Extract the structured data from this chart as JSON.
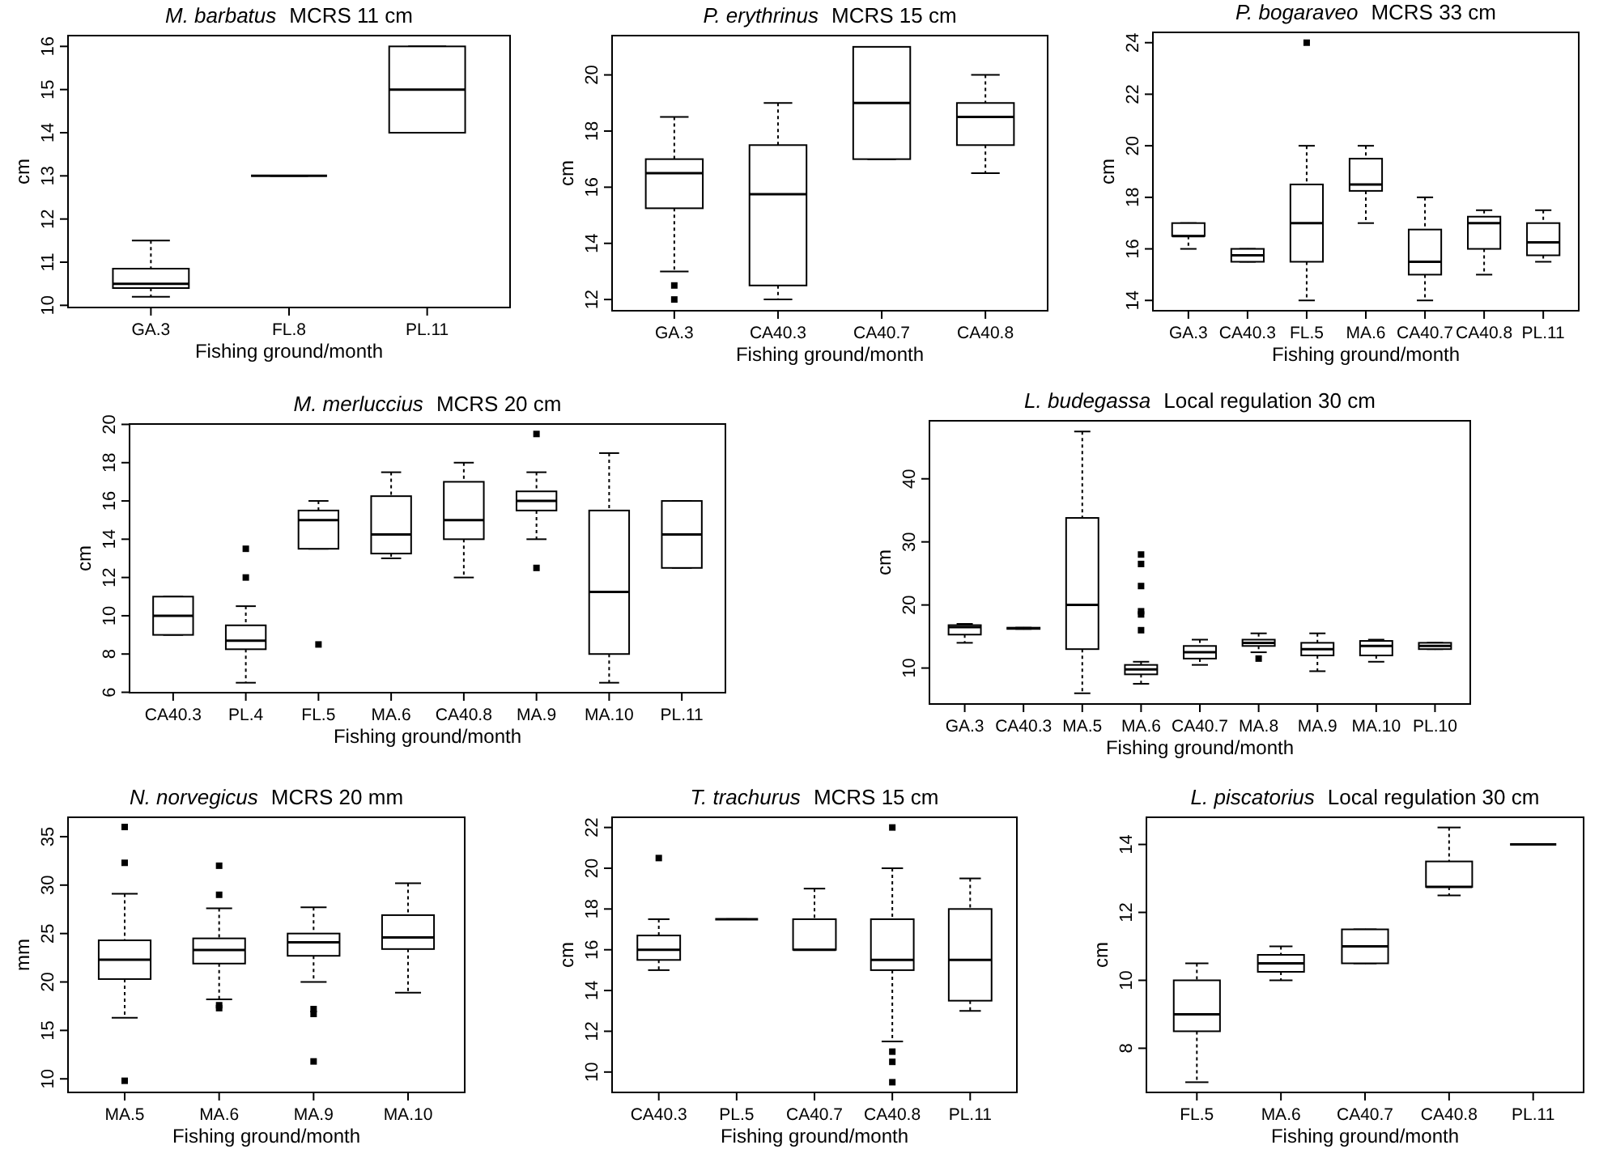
{
  "chart_data": [
    {
      "type": "box",
      "title": "M. barbatus",
      "subtitle": "MCRS 11 cm",
      "xlabel": "Fishing ground/month",
      "ylabel": "cm",
      "categories": [
        "GA.3",
        "FL.8",
        "PL.11"
      ],
      "ylim": [
        9.95,
        16.25
      ],
      "yticks": [
        10,
        11,
        12,
        13,
        14,
        15,
        16
      ],
      "grid": false,
      "boxes": [
        {
          "low": 10.2,
          "q1": 10.4,
          "median": 10.5,
          "q3": 10.85,
          "high": 11.5
        },
        {
          "low": 13,
          "q1": 13,
          "median": 13,
          "q3": 13,
          "high": 13
        },
        {
          "low": 14,
          "q1": 14,
          "median": 15,
          "q3": 16,
          "high": 16
        }
      ]
    },
    {
      "type": "box",
      "title": "P. erythrinus",
      "subtitle": "MCRS 15 cm",
      "xlabel": "Fishing ground/month",
      "ylabel": "cm",
      "categories": [
        "GA.3",
        "CA40.3",
        "CA40.7",
        "CA40.8"
      ],
      "ylim": [
        11.6,
        21.4
      ],
      "yticks": [
        12,
        14,
        16,
        18,
        20
      ],
      "grid": false,
      "boxes": [
        {
          "low": 13,
          "q1": 15.25,
          "median": 16.5,
          "q3": 17,
          "high": 18.5,
          "outliers": [
            12.5,
            12
          ]
        },
        {
          "low": 12,
          "q1": 12.5,
          "median": 15.75,
          "q3": 17.5,
          "high": 19
        },
        {
          "low": 17,
          "q1": 17,
          "median": 19,
          "q3": 21,
          "high": 21
        },
        {
          "low": 16.5,
          "q1": 17.5,
          "median": 18.5,
          "q3": 19,
          "high": 20
        }
      ]
    },
    {
      "type": "box",
      "title": "P. bogaraveo",
      "subtitle": "MCRS 33 cm",
      "xlabel": "Fishing ground/month",
      "ylabel": "cm",
      "categories": [
        "GA.3",
        "CA40.3",
        "FL.5",
        "MA.6",
        "CA40.7",
        "CA40.8",
        "PL.11"
      ],
      "ylim": [
        13.6,
        24.4
      ],
      "yticks": [
        14,
        16,
        18,
        20,
        22,
        24
      ],
      "grid": false,
      "boxes": [
        {
          "low": 16,
          "q1": 16.5,
          "median": 16.5,
          "q3": 17,
          "high": 17
        },
        {
          "low": 15.5,
          "q1": 15.5,
          "median": 15.75,
          "q3": 16,
          "high": 16
        },
        {
          "low": 14,
          "q1": 15.5,
          "median": 17,
          "q3": 18.5,
          "high": 20,
          "outliers": [
            24
          ]
        },
        {
          "low": 17,
          "q1": 18.25,
          "median": 18.5,
          "q3": 19.5,
          "high": 20
        },
        {
          "low": 14,
          "q1": 15,
          "median": 15.5,
          "q3": 16.75,
          "high": 18
        },
        {
          "low": 15,
          "q1": 16,
          "median": 17,
          "q3": 17.25,
          "high": 17.5
        },
        {
          "low": 15.5,
          "q1": 15.75,
          "median": 16.25,
          "q3": 17,
          "high": 17.5
        }
      ]
    },
    {
      "type": "box",
      "title": "M. merluccius",
      "subtitle": "MCRS 20 cm",
      "xlabel": "Fishing ground/month",
      "ylabel": "cm",
      "categories": [
        "CA40.3",
        "PL.4",
        "FL.5",
        "MA.6",
        "CA40.8",
        "MA.9",
        "MA.10",
        "PL.11"
      ],
      "ylim": [
        5.98,
        20.02
      ],
      "yticks": [
        6,
        8,
        10,
        12,
        14,
        16,
        18,
        20
      ],
      "grid": false,
      "boxes": [
        {
          "low": 9,
          "q1": 9,
          "median": 10,
          "q3": 11,
          "high": 11
        },
        {
          "low": 6.5,
          "q1": 8.25,
          "median": 8.7,
          "q3": 9.5,
          "high": 10.5,
          "outliers": [
            12,
            13.5
          ]
        },
        {
          "low": 13.5,
          "q1": 13.5,
          "median": 15,
          "q3": 15.5,
          "high": 16,
          "outliers": [
            8.5
          ]
        },
        {
          "low": 13,
          "q1": 13.25,
          "median": 14.25,
          "q3": 16.25,
          "high": 17.5
        },
        {
          "low": 12,
          "q1": 14,
          "median": 15,
          "q3": 17,
          "high": 18
        },
        {
          "low": 14,
          "q1": 15.5,
          "median": 16,
          "q3": 16.5,
          "high": 17.5,
          "outliers": [
            19.5,
            12.5
          ]
        },
        {
          "low": 6.5,
          "q1": 8,
          "median": 11.25,
          "q3": 15.5,
          "high": 18.5
        },
        {
          "low": 12.5,
          "q1": 12.5,
          "median": 14.25,
          "q3": 16,
          "high": 16
        }
      ]
    },
    {
      "type": "box",
      "title": "L. budegassa",
      "subtitle": "Local regulation 30 cm",
      "xlabel": "Fishing ground/month",
      "ylabel": "cm",
      "categories": [
        "GA.3",
        "CA40.3",
        "MA.5",
        "MA.6",
        "CA40.7",
        "MA.8",
        "MA.9",
        "MA.10",
        "PL.10"
      ],
      "ylim": [
        4.3,
        49.2
      ],
      "yticks": [
        10,
        20,
        30,
        40
      ],
      "grid": false,
      "boxes": [
        {
          "low": 14,
          "q1": 15.3,
          "median": 16.5,
          "q3": 16.8,
          "high": 17
        },
        {
          "low": 16.2,
          "q1": 16.2,
          "median": 16.3,
          "q3": 16.4,
          "high": 16.4
        },
        {
          "low": 6,
          "q1": 13,
          "median": 20,
          "q3": 33.8,
          "high": 47.5
        },
        {
          "low": 7.5,
          "q1": 9,
          "median": 9.8,
          "q3": 10.5,
          "high": 11,
          "outliers": [
            16,
            18.5,
            19,
            23,
            26.5,
            28
          ]
        },
        {
          "low": 10.5,
          "q1": 11.5,
          "median": 12.5,
          "q3": 13.5,
          "high": 14.5
        },
        {
          "low": 12.5,
          "q1": 13.5,
          "median": 14,
          "q3": 14.5,
          "high": 15.5,
          "outliers": [
            11.5
          ]
        },
        {
          "low": 9.5,
          "q1": 12,
          "median": 13,
          "q3": 14,
          "high": 15.5
        },
        {
          "low": 11,
          "q1": 12,
          "median": 13.5,
          "q3": 14.3,
          "high": 14.5
        },
        {
          "low": 13,
          "q1": 13,
          "median": 13.5,
          "q3": 14,
          "high": 14
        }
      ]
    },
    {
      "type": "box",
      "title": "N. norvegicus",
      "subtitle": "MCRS 20 mm",
      "xlabel": "Fishing ground/month",
      "ylabel": "mm",
      "categories": [
        "MA.5",
        "MA.6",
        "MA.9",
        "MA.10"
      ],
      "ylim": [
        8.6,
        37
      ],
      "yticks": [
        10,
        15,
        20,
        25,
        30,
        35
      ],
      "grid": false,
      "boxes": [
        {
          "low": 16.3,
          "q1": 20.3,
          "median": 22.3,
          "q3": 24.3,
          "high": 29.1,
          "outliers": [
            32.3,
            36,
            9.8
          ]
        },
        {
          "low": 18.2,
          "q1": 21.9,
          "median": 23.3,
          "q3": 24.5,
          "high": 27.6,
          "outliers": [
            17.3,
            17.6,
            29,
            32
          ]
        },
        {
          "low": 20,
          "q1": 22.7,
          "median": 24.1,
          "q3": 25,
          "high": 27.7,
          "outliers": [
            16.7,
            17.2,
            11.8
          ]
        },
        {
          "low": 18.9,
          "q1": 23.4,
          "median": 24.6,
          "q3": 26.9,
          "high": 30.2
        }
      ]
    },
    {
      "type": "box",
      "title": "T. trachurus",
      "subtitle": "MCRS 15 cm",
      "xlabel": "Fishing ground/month",
      "ylabel": "cm",
      "categories": [
        "CA40.3",
        "PL.5",
        "CA40.7",
        "CA40.8",
        "PL.11"
      ],
      "ylim": [
        9,
        22.5
      ],
      "yticks": [
        10,
        12,
        14,
        16,
        18,
        20,
        22
      ],
      "grid": false,
      "boxes": [
        {
          "low": 15,
          "q1": 15.5,
          "median": 16,
          "q3": 16.7,
          "high": 17.5,
          "outliers": [
            20.5
          ]
        },
        {
          "low": 17.5,
          "q1": 17.5,
          "median": 17.5,
          "q3": 17.5,
          "high": 17.5
        },
        {
          "low": 16,
          "q1": 16,
          "median": 16,
          "q3": 17.5,
          "high": 19
        },
        {
          "low": 11.5,
          "q1": 15,
          "median": 15.5,
          "q3": 17.5,
          "high": 20,
          "outliers": [
            22,
            11,
            10.5,
            9.5
          ]
        },
        {
          "low": 13,
          "q1": 13.5,
          "median": 15.5,
          "q3": 18,
          "high": 19.5
        }
      ]
    },
    {
      "type": "box",
      "title": "L. piscatorius",
      "subtitle": "Local regulation 30 cm",
      "xlabel": "Fishing ground/month",
      "ylabel": "cm",
      "categories": [
        "FL.5",
        "MA.6",
        "CA40.7",
        "CA40.8",
        "PL.11"
      ],
      "ylim": [
        6.7,
        14.8
      ],
      "yticks": [
        8,
        10,
        12,
        14
      ],
      "grid": false,
      "boxes": [
        {
          "low": 7,
          "q1": 8.5,
          "median": 9,
          "q3": 10,
          "high": 10.5
        },
        {
          "low": 10,
          "q1": 10.25,
          "median": 10.5,
          "q3": 10.75,
          "high": 11
        },
        {
          "low": 10.5,
          "q1": 10.5,
          "median": 11,
          "q3": 11.5,
          "high": 11.5
        },
        {
          "low": 12.5,
          "q1": 12.75,
          "median": 12.75,
          "q3": 13.5,
          "high": 14.5
        },
        {
          "low": 14,
          "q1": 14,
          "median": 14,
          "q3": 14,
          "high": 14
        }
      ]
    }
  ]
}
